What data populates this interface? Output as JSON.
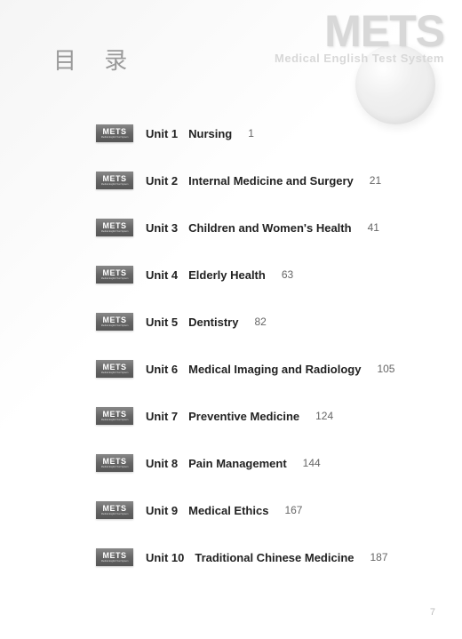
{
  "header": {
    "title": "目 录",
    "watermark_title": "METS",
    "watermark_sub": "Medical English Test System"
  },
  "badge": {
    "main": "METS",
    "sub": "Medical English Test System"
  },
  "toc": [
    {
      "unit": "Unit 1",
      "topic": "Nursing",
      "page": "1"
    },
    {
      "unit": "Unit 2",
      "topic": "Internal Medicine and Surgery",
      "page": "21"
    },
    {
      "unit": "Unit 3",
      "topic": "Children and Women's Health",
      "page": "41"
    },
    {
      "unit": "Unit 4",
      "topic": "Elderly Health",
      "page": "63"
    },
    {
      "unit": "Unit 5",
      "topic": "Dentistry",
      "page": "82"
    },
    {
      "unit": "Unit 6",
      "topic": "Medical Imaging and Radiology",
      "page": "105"
    },
    {
      "unit": "Unit 7",
      "topic": "Preventive Medicine",
      "page": "124"
    },
    {
      "unit": "Unit 8",
      "topic": "Pain Management",
      "page": "144"
    },
    {
      "unit": "Unit 9",
      "topic": "Medical Ethics",
      "page": "167"
    },
    {
      "unit": "Unit 10",
      "topic": "Traditional Chinese Medicine",
      "page": "187"
    }
  ],
  "footer": {
    "page_number": "7"
  },
  "style": {
    "title_color": "#9a9a9a",
    "text_color": "#222",
    "pagenum_color": "#666",
    "badge_bg": "#666",
    "watermark_color": "#d8d8d8",
    "title_fontsize": 26,
    "row_fontsize": 13,
    "row_spacing": 33
  }
}
